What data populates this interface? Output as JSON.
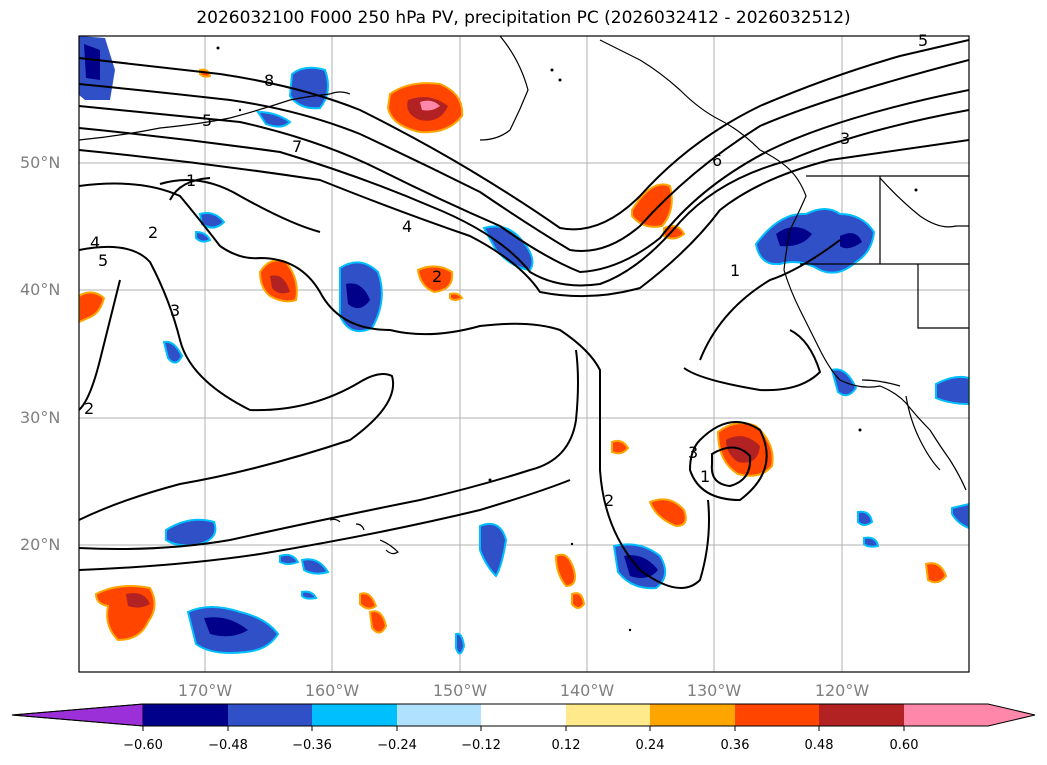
{
  "title": "2026032100 F000 250 hPa PV, precipitation PC (2026032412 - 2026032512)",
  "map": {
    "lat_labels": [
      "50°N",
      "40°N",
      "30°N",
      "20°N"
    ],
    "lon_labels": [
      "170°W",
      "160°W",
      "150°W",
      "140°W",
      "130°W",
      "120°W"
    ],
    "contour_labels": [
      "8",
      "7",
      "6",
      "5",
      "5",
      "4",
      "4",
      "3",
      "3",
      "3",
      "2",
      "2",
      "2",
      "2",
      "1",
      "1",
      "1",
      "5"
    ]
  },
  "colorbar": {
    "ticks": [
      "−0.60",
      "−0.48",
      "−0.36",
      "−0.24",
      "−0.12",
      "0.12",
      "0.24",
      "0.36",
      "0.48",
      "0.60"
    ],
    "colors": [
      "#9b30d9",
      "#00008b",
      "#3050c8",
      "#00bfff",
      "#b0e2ff",
      "#ffffff",
      "#ffe98a",
      "#ffa500",
      "#ff4500",
      "#b22222",
      "#ff88aa",
      "#ff88aa"
    ]
  }
}
